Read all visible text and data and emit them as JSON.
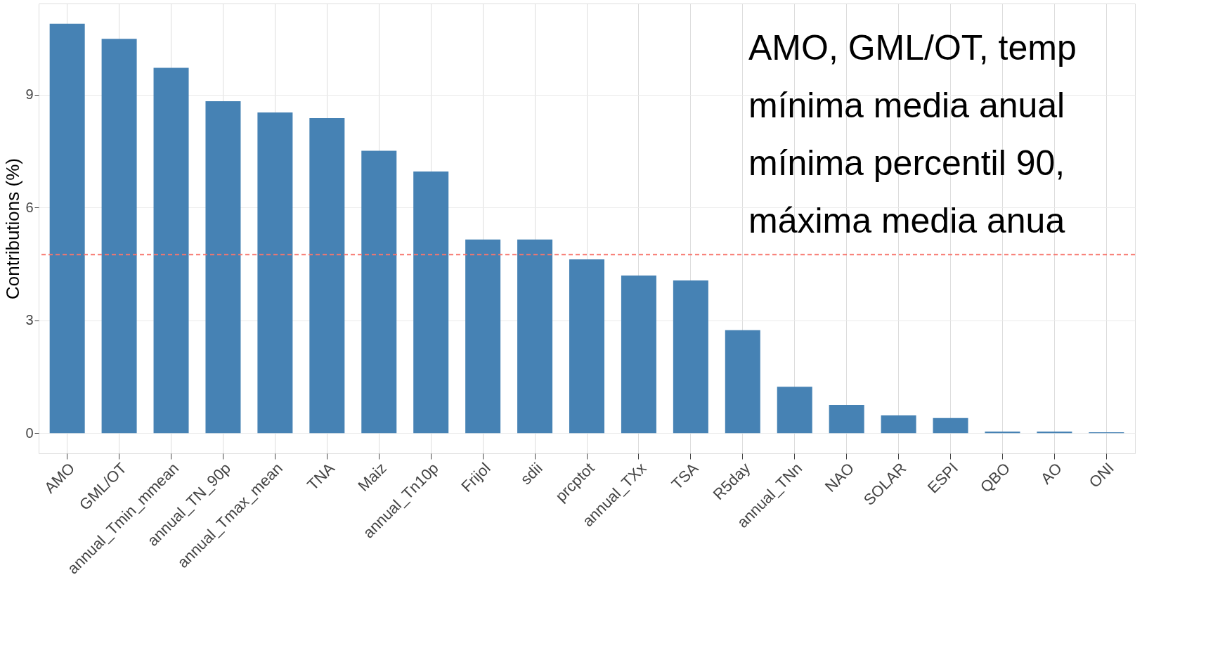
{
  "chart_data": {
    "type": "bar",
    "ylabel": "Contributions (%)",
    "categories": [
      "AMO",
      "GML/OT",
      "annual_Tmin_mmean",
      "annual_TN_90p",
      "annual_Tmax_mean",
      "TNA",
      "Maiz",
      "annual_Tn10p",
      "Frijol",
      "sdii",
      "prcptot",
      "annual_TXx",
      "TSA",
      "R5day",
      "annual_TNn",
      "NAO",
      "SOLAR",
      "ESPI",
      "QBO",
      "AO",
      "ONI"
    ],
    "values": [
      10.89,
      10.49,
      9.72,
      8.83,
      8.53,
      8.38,
      7.51,
      6.96,
      5.15,
      5.15,
      4.62,
      4.19,
      4.06,
      2.74,
      1.23,
      0.75,
      0.47,
      0.4,
      0.04,
      0.04,
      0.02
    ],
    "color": "#4682b4",
    "ylim": [
      -0.54,
      11.43
    ],
    "yticks": [
      0,
      3,
      6,
      9
    ],
    "grid": true,
    "ref_lines": [
      {
        "axis": "y",
        "value": 4.75,
        "color": "#f8766d",
        "line_style": "dashed"
      }
    ],
    "annotations": [
      "AMO, GML/OT, temp",
      "mínima media anual",
      "mínima percentil 90,",
      "máxima media anua"
    ]
  }
}
